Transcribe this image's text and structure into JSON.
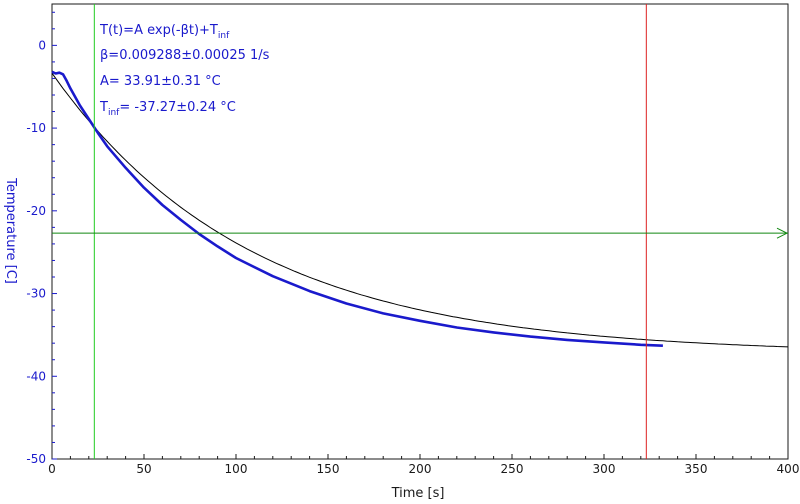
{
  "chart_data": {
    "type": "line",
    "xlabel": "Time [s]",
    "ylabel": "Temperature [C]",
    "xlim": [
      0,
      400
    ],
    "ylim": [
      -50,
      5
    ],
    "xticks": [
      "0",
      "50",
      "100",
      "150",
      "200",
      "250",
      "300",
      "350",
      "400"
    ],
    "yticks": [
      "0",
      "-10",
      "-20",
      "-30",
      "-40",
      "-50"
    ],
    "grid": false,
    "colors": {
      "measured": "#1a1acc",
      "fit": "#000000",
      "start_cursor": "#22cc22",
      "end_cursor": "#dd2222",
      "horizontal_cursor": "#118811",
      "axis": "#1a1acc"
    },
    "annotation": {
      "line1": "T(t)=A exp(-βt)+T",
      "line1_sub": "inf",
      "line2": "β=0.009288±0.00025 1/s",
      "line3": "A= 33.91±0.31 °C",
      "line4_pre": "T",
      "line4_sub": "inf",
      "line4_post": "= -37.27±0.24 °C"
    },
    "fit": {
      "A": 33.91,
      "beta": 0.009288,
      "T_inf": -37.27,
      "x_start": 0,
      "x_end": 400
    },
    "measured_series": {
      "x": [
        0,
        2,
        4,
        6,
        8,
        10,
        15,
        20,
        25,
        30,
        40,
        50,
        60,
        70,
        80,
        90,
        100,
        120,
        140,
        160,
        180,
        200,
        220,
        240,
        260,
        280,
        300,
        320,
        332
      ],
      "y": [
        -3.2,
        -3.4,
        -3.3,
        -3.5,
        -4.3,
        -5.2,
        -7.2,
        -8.9,
        -10.6,
        -12.2,
        -14.8,
        -17.2,
        -19.3,
        -21.1,
        -22.8,
        -24.3,
        -25.7,
        -27.9,
        -29.7,
        -31.2,
        -32.4,
        -33.3,
        -34.1,
        -34.7,
        -35.2,
        -35.6,
        -35.9,
        -36.2,
        -36.3
      ]
    },
    "cursors": {
      "start_x": 23,
      "end_x": 323,
      "level_y": -22.7
    }
  }
}
